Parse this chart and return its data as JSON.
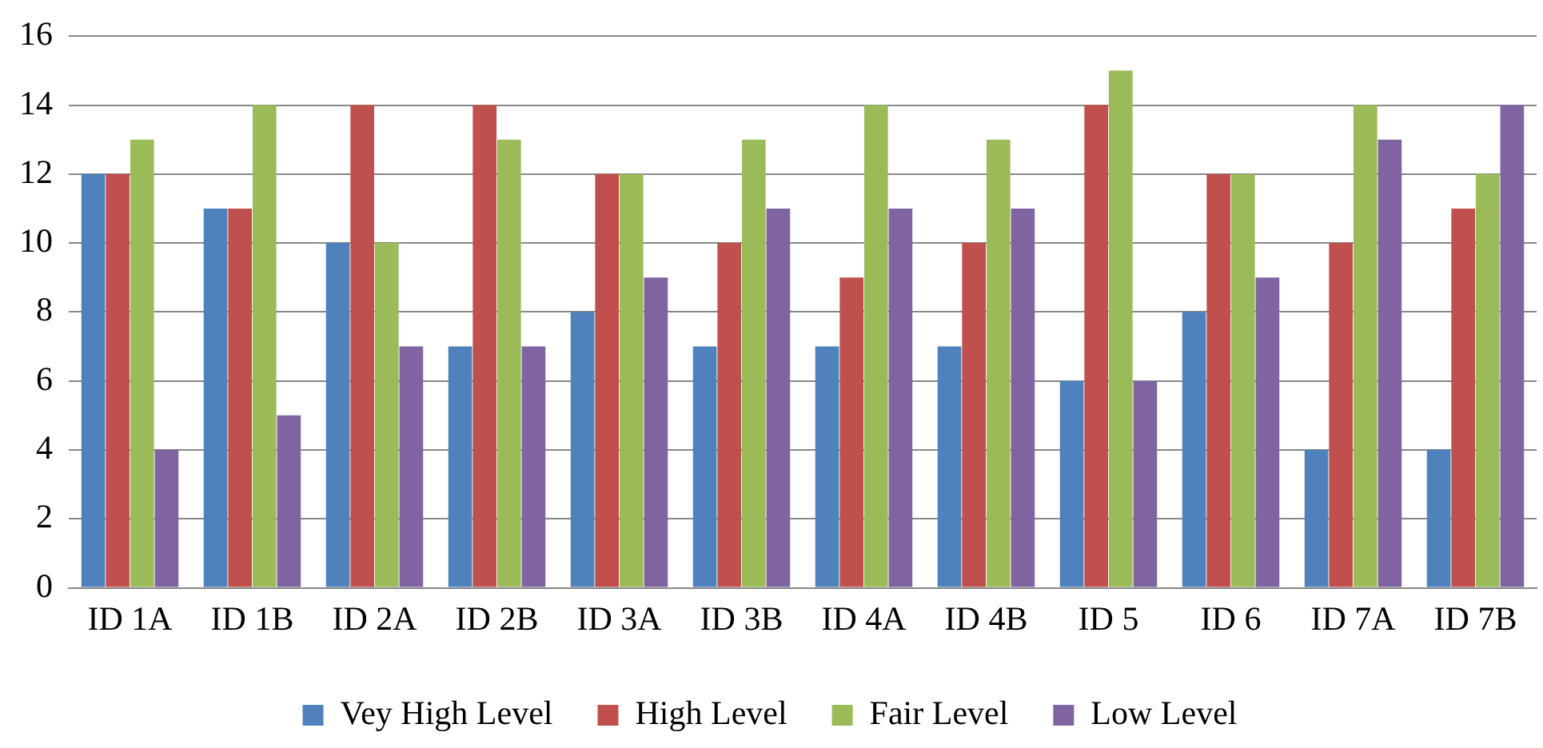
{
  "chart_data": {
    "type": "bar",
    "categories": [
      "ID 1A",
      "ID 1B",
      "ID 2A",
      "ID 2B",
      "ID 3A",
      "ID 3B",
      "ID 4A",
      "ID 4B",
      "ID 5",
      "ID 6",
      "ID 7A",
      "ID 7B"
    ],
    "series": [
      {
        "name": "Vey High Level",
        "color": "#4f81bd",
        "values": [
          12,
          11,
          10,
          7,
          8,
          7,
          7,
          7,
          6,
          8,
          4,
          4
        ]
      },
      {
        "name": "High Level",
        "color": "#c0504d",
        "values": [
          12,
          11,
          14,
          14,
          12,
          10,
          9,
          10,
          14,
          12,
          10,
          11
        ]
      },
      {
        "name": "Fair Level",
        "color": "#9bbb59",
        "values": [
          13,
          14,
          10,
          13,
          12,
          13,
          14,
          13,
          15,
          12,
          14,
          12
        ]
      },
      {
        "name": "Low Level",
        "color": "#8064a2",
        "values": [
          4,
          5,
          7,
          7,
          9,
          11,
          11,
          11,
          6,
          9,
          13,
          14
        ]
      }
    ],
    "ylim": [
      0,
      16
    ],
    "yticks": [
      0,
      2,
      4,
      6,
      8,
      10,
      12,
      14,
      16
    ],
    "grid": "y",
    "legend": "bottom"
  }
}
